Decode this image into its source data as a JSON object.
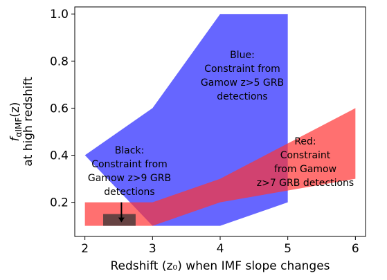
{
  "chart_data": {
    "type": "area",
    "xlabel": "Redshift (z₀) when IMF slope changes",
    "ylabel_line1": "fαIMF(z)",
    "ylabel_line2": "at high redshift",
    "xlim": [
      1.85,
      6.15
    ],
    "ylim": [
      0.055,
      1.03
    ],
    "xticks": [
      2,
      3,
      4,
      5,
      6
    ],
    "yticks": [
      0.2,
      0.4,
      0.6,
      0.8,
      1.0
    ],
    "xtick_labels": [
      "2",
      "3",
      "4",
      "5",
      "6"
    ],
    "ytick_labels": [
      "0.2",
      "0.4",
      "0.6",
      "0.8",
      "1.0"
    ],
    "grid": false,
    "regions": [
      {
        "name": "Blue",
        "color": "#3333ff",
        "opacity": 0.75,
        "upper": [
          [
            2,
            0.4
          ],
          [
            3,
            0.6
          ],
          [
            4,
            1.0
          ],
          [
            5,
            1.0
          ]
        ],
        "lower": [
          [
            2,
            0.4
          ],
          [
            3,
            0.1
          ],
          [
            4,
            0.1
          ],
          [
            5,
            0.2
          ]
        ]
      },
      {
        "name": "Red",
        "color": "#ff3333",
        "opacity": 0.7,
        "upper": [
          [
            2,
            0.2
          ],
          [
            3,
            0.2
          ],
          [
            4,
            0.3
          ],
          [
            6,
            0.6
          ]
        ],
        "lower": [
          [
            2,
            0.1
          ],
          [
            3,
            0.1
          ],
          [
            4,
            0.2
          ],
          [
            6,
            0.3
          ]
        ]
      },
      {
        "name": "Black",
        "color": "#333333",
        "opacity": 0.75,
        "upper": [
          [
            2.27,
            0.15
          ],
          [
            2.75,
            0.15
          ]
        ],
        "lower": [
          [
            2.27,
            0.1
          ],
          [
            2.75,
            0.1
          ]
        ]
      }
    ],
    "annotations": {
      "blue": [
        "Blue:",
        "Constraint from",
        "Gamow z>5 GRB",
        "detections"
      ],
      "black": [
        "Black:",
        "Constraint from",
        "Gamow z>9 GRB",
        "detections"
      ],
      "red": [
        "Red:",
        "Constraint",
        "from Gamow",
        "z>7 GRB detections"
      ]
    },
    "arrow": {
      "x": 2.54,
      "from_y": 0.2,
      "to_y": 0.115
    }
  }
}
